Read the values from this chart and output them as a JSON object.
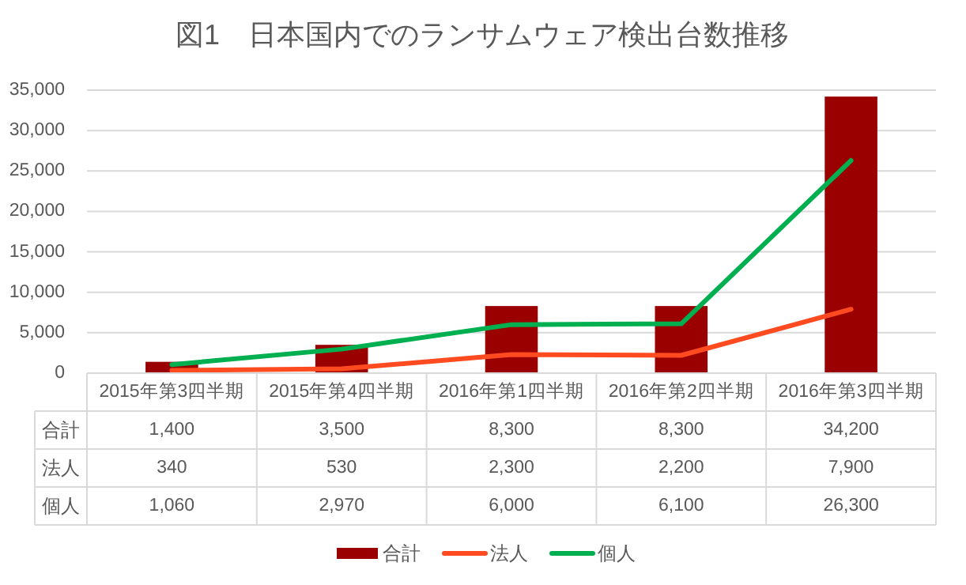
{
  "chart_data": {
    "type": "bar",
    "title": "図1　日本国内でのランサムウェア検出台数推移",
    "categories": [
      "2015年第3四半期",
      "2015年第4四半期",
      "2016年第1四半期",
      "2016年第2四半期",
      "2016年第3四半期"
    ],
    "series": [
      {
        "name": "合計",
        "color": "#9b0000",
        "values": [
          1400,
          3500,
          8300,
          8300,
          34200
        ],
        "value_labels": [
          "1,400",
          "3,500",
          "8,300",
          "8,300",
          "34,200"
        ]
      },
      {
        "name": "法人",
        "type": "line",
        "color": "#ff4b1f",
        "values": [
          340,
          530,
          2300,
          2200,
          7900
        ],
        "value_labels": [
          "340",
          "530",
          "2,300",
          "2,200",
          "7,900"
        ]
      },
      {
        "name": "個人",
        "type": "line",
        "color": "#00b050",
        "values": [
          1060,
          2970,
          6000,
          6100,
          26300
        ],
        "value_labels": [
          "1,060",
          "2,970",
          "6,000",
          "6,100",
          "26,300"
        ]
      }
    ],
    "ylim": [
      0,
      35000
    ],
    "yticks": [
      {
        "value": 0,
        "label": "0"
      },
      {
        "value": 5000,
        "label": "5,000"
      },
      {
        "value": 10000,
        "label": "10,000"
      },
      {
        "value": 15000,
        "label": "15,000"
      },
      {
        "value": 20000,
        "label": "20,000"
      },
      {
        "value": 25000,
        "label": "25,000"
      },
      {
        "value": 30000,
        "label": "30,000"
      },
      {
        "value": 35000,
        "label": "35,000"
      }
    ],
    "grid": "y",
    "legend": "bottom"
  }
}
